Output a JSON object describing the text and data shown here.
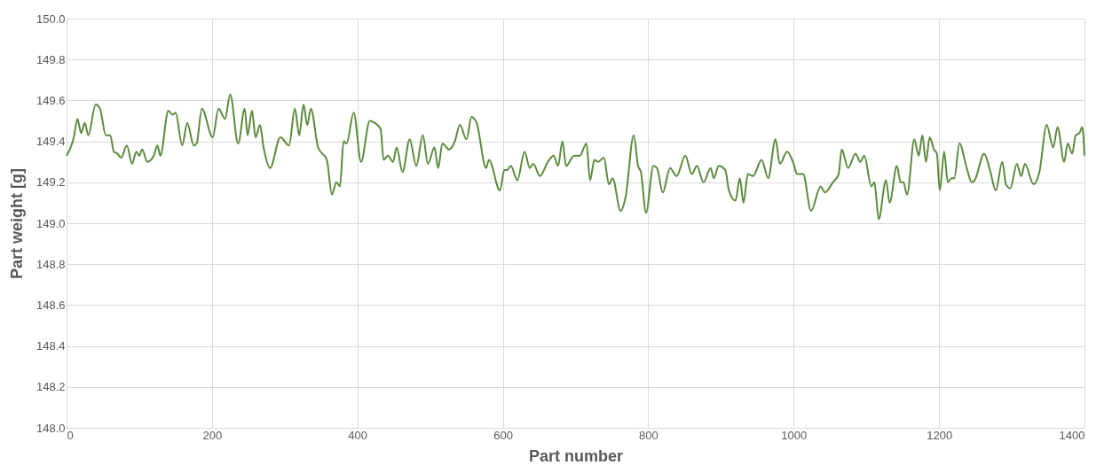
{
  "chart_data": {
    "type": "line",
    "xlabel": "Part number",
    "ylabel": "Part weight [g]",
    "xlim": [
      0,
      1400
    ],
    "xticks": [
      0,
      200,
      400,
      600,
      800,
      1000,
      1200,
      1400
    ],
    "ylim": [
      148.0,
      150.0
    ],
    "yticks": [
      {
        "value": 148.0,
        "label": "148.0"
      },
      {
        "value": 148.2,
        "label": "148.2"
      },
      {
        "value": 148.4,
        "label": "148.4"
      },
      {
        "value": 148.6,
        "label": "148.6"
      },
      {
        "value": 148.8,
        "label": "148.8"
      },
      {
        "value": 149.0,
        "label": "149.0"
      },
      {
        "value": 149.2,
        "label": "149.2"
      },
      {
        "value": 149.4,
        "label": "149.4"
      },
      {
        "value": 149.6,
        "label": "149.6"
      },
      {
        "value": 149.8,
        "label": "149.8"
      },
      {
        "value": 150.0,
        "label": "150.0"
      }
    ],
    "grid": true,
    "marker": "none",
    "line_style": "solid",
    "series": [
      {
        "color": "#5b8a3c",
        "x": [
          0,
          10,
          15,
          20,
          25,
          30,
          40,
          46,
          54,
          60,
          65,
          70,
          75,
          83,
          90,
          96,
          100,
          104,
          111,
          120,
          125,
          129,
          140,
          146,
          150,
          159,
          166,
          175,
          179,
          186,
          201,
          209,
          218,
          225,
          236,
          245,
          249,
          255,
          260,
          266,
          271,
          280,
          294,
          306,
          314,
          320,
          326,
          331,
          336,
          346,
          358,
          365,
          371,
          376,
          381,
          385,
          395,
          405,
          417,
          424,
          432,
          436,
          442,
          449,
          454,
          462,
          472,
          481,
          490,
          497,
          506,
          511,
          517,
          526,
          534,
          541,
          550,
          557,
          564,
          577,
          581,
          596,
          602,
          606,
          611,
          620,
          630,
          637,
          642,
          651,
          662,
          670,
          676,
          682,
          687,
          698,
          706,
          715,
          720,
          726,
          731,
          739,
          746,
          751,
          762,
          769,
          780,
          786,
          790,
          797,
          807,
          812,
          820,
          830,
          839,
          851,
          860,
          867,
          876,
          886,
          890,
          897,
          906,
          911,
          920,
          926,
          931,
          937,
          944,
          956,
          965,
          975,
          981,
          991,
          999,
          1005,
          1013,
          1024,
          1037,
          1043,
          1054,
          1062,
          1066,
          1075,
          1085,
          1092,
          1097,
          1107,
          1111,
          1117,
          1127,
          1132,
          1142,
          1147,
          1151,
          1156,
          1166,
          1172,
          1177,
          1182,
          1187,
          1193,
          1197,
          1201,
          1207,
          1212,
          1217,
          1221,
          1228,
          1238,
          1245,
          1249,
          1262,
          1270,
          1278,
          1287,
          1292,
          1298,
          1307,
          1313,
          1318,
          1330,
          1338,
          1348,
          1357,
          1363,
          1372,
          1377,
          1383,
          1388,
          1393,
          1397,
          1400
        ],
        "values": [
          149.33,
          149.42,
          149.51,
          149.44,
          149.49,
          149.43,
          149.58,
          149.56,
          149.43,
          149.43,
          149.35,
          149.34,
          149.32,
          149.38,
          149.29,
          149.35,
          149.33,
          149.36,
          149.3,
          149.33,
          149.38,
          149.33,
          149.55,
          149.53,
          149.54,
          149.38,
          149.49,
          149.38,
          149.39,
          149.56,
          149.42,
          149.56,
          149.51,
          149.63,
          149.39,
          149.56,
          149.43,
          149.55,
          149.42,
          149.48,
          149.37,
          149.27,
          149.42,
          149.38,
          149.56,
          149.43,
          149.58,
          149.48,
          149.56,
          149.37,
          149.31,
          149.14,
          149.2,
          149.18,
          149.4,
          149.39,
          149.54,
          149.3,
          149.5,
          149.49,
          149.46,
          149.31,
          149.33,
          149.3,
          149.37,
          149.25,
          149.41,
          149.28,
          149.43,
          149.29,
          149.37,
          149.27,
          149.39,
          149.36,
          149.4,
          149.48,
          149.41,
          149.52,
          149.49,
          149.27,
          149.31,
          149.16,
          149.26,
          149.26,
          149.28,
          149.21,
          149.35,
          149.27,
          149.29,
          149.23,
          149.3,
          149.33,
          149.28,
          149.4,
          149.28,
          149.33,
          149.33,
          149.39,
          149.21,
          149.31,
          149.3,
          149.32,
          149.19,
          149.22,
          149.06,
          149.13,
          149.43,
          149.28,
          149.25,
          149.05,
          149.28,
          149.27,
          149.15,
          149.27,
          149.23,
          149.33,
          149.24,
          149.28,
          149.2,
          149.27,
          149.22,
          149.28,
          149.26,
          149.16,
          149.11,
          149.22,
          149.1,
          149.24,
          149.23,
          149.31,
          149.22,
          149.41,
          149.29,
          149.35,
          149.3,
          149.24,
          149.24,
          149.06,
          149.18,
          149.15,
          149.2,
          149.24,
          149.36,
          149.27,
          149.34,
          149.3,
          149.33,
          149.18,
          149.2,
          149.02,
          149.21,
          149.1,
          149.28,
          149.2,
          149.2,
          149.14,
          149.41,
          149.33,
          149.43,
          149.3,
          149.42,
          149.36,
          149.34,
          149.16,
          149.35,
          149.2,
          149.22,
          149.22,
          149.39,
          149.27,
          149.2,
          149.21,
          149.34,
          149.26,
          149.16,
          149.3,
          149.19,
          149.17,
          149.29,
          149.23,
          149.29,
          149.19,
          149.25,
          149.48,
          149.37,
          149.47,
          149.3,
          149.39,
          149.34,
          149.43,
          149.44,
          149.47,
          149.33
        ]
      }
    ]
  }
}
